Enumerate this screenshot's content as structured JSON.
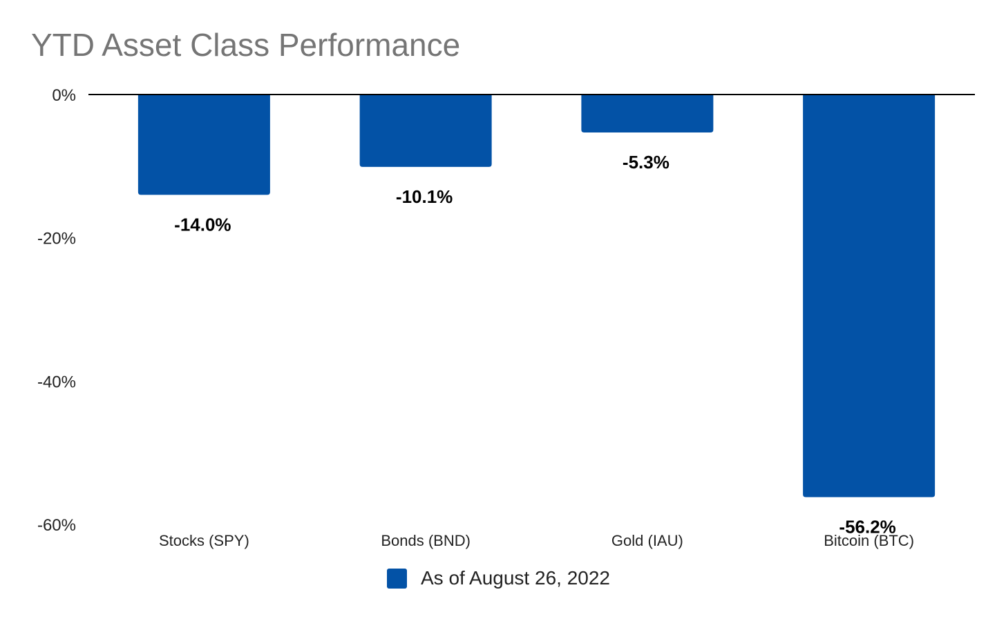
{
  "chart_data": {
    "type": "bar",
    "title": "YTD Asset Class Performance",
    "categories": [
      "Stocks (SPY)",
      "Bonds (BND)",
      "Gold (IAU)",
      "Bitcoin (BTC)"
    ],
    "series": [
      {
        "name": "As of August 26, 2022",
        "values": [
          -14.0,
          -10.1,
          -5.3,
          -56.2
        ],
        "data_labels": [
          "-14.0%",
          "-10.1%",
          "-5.3%",
          "-56.2%"
        ]
      }
    ],
    "ylim": [
      -60,
      0
    ],
    "yticks": [
      0,
      -20,
      -40,
      -60
    ],
    "ytick_labels": [
      "0%",
      "-20%",
      "-40%",
      "-60%"
    ],
    "xlabel": "",
    "ylabel": "",
    "grid": false,
    "legend_position": "bottom",
    "colors": {
      "bar": "#0352A6",
      "title": "#757575",
      "axis": "#000000"
    }
  }
}
